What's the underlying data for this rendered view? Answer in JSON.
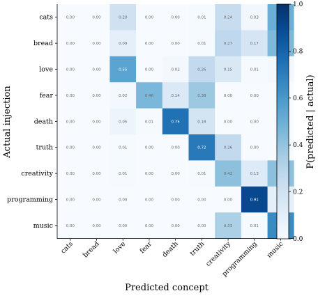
{
  "chart_data": {
    "type": "heatmap",
    "xlabel": "Predicted concept",
    "ylabel": "Actual injection",
    "x_categories": [
      "cats",
      "bread",
      "love",
      "fear",
      "death",
      "truth",
      "creativity",
      "programming",
      "music"
    ],
    "y_categories": [
      "cats",
      "bread",
      "love",
      "fear",
      "death",
      "truth",
      "creativity",
      "programming",
      "music"
    ],
    "values": [
      [
        0.0,
        0.0,
        0.2,
        0.0,
        0.0,
        0.01,
        0.24,
        0.03,
        0.5
      ],
      [
        0.0,
        0.0,
        0.09,
        0.0,
        0.0,
        0.01,
        0.27,
        0.17,
        0.45
      ],
      [
        0.0,
        0.0,
        0.55,
        0.0,
        0.02,
        0.26,
        0.15,
        0.01,
        0.02
      ],
      [
        0.0,
        0.0,
        0.02,
        0.46,
        0.14,
        0.38,
        0.0,
        0.0,
        0.0
      ],
      [
        0.0,
        0.0,
        0.05,
        0.01,
        0.75,
        0.18,
        0.0,
        0.0,
        0.0
      ],
      [
        0.0,
        0.0,
        0.01,
        0.0,
        0.0,
        0.72,
        0.26,
        0.0,
        0.0
      ],
      [
        0.0,
        0.0,
        0.01,
        0.0,
        0.0,
        0.01,
        0.42,
        0.13,
        0.42
      ],
      [
        0.0,
        0.0,
        0.0,
        0.0,
        0.0,
        0.0,
        0.0,
        0.91,
        0.09
      ],
      [
        0.0,
        0.0,
        0.0,
        0.0,
        0.0,
        0.0,
        0.33,
        0.01,
        0.65
      ]
    ],
    "colorbar": {
      "label": "P(predicted | actual)",
      "range": [
        0.0,
        1.0
      ],
      "ticks": [
        "0.0",
        "0.2",
        "0.4",
        "0.6",
        "0.8",
        "1.0"
      ],
      "colormap": "Blues"
    },
    "grid": false
  }
}
